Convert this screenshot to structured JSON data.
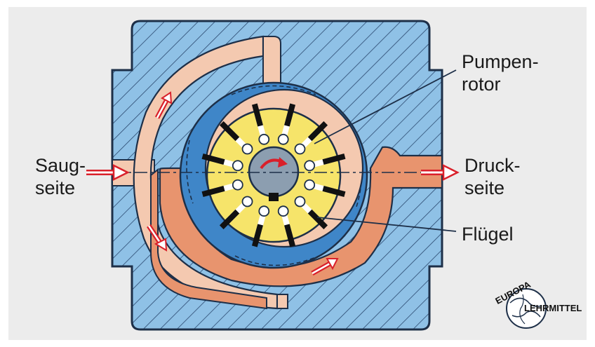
{
  "labels": {
    "suction_line1": "Saug-",
    "suction_line2": "seite",
    "pressure_line1": "Druck-",
    "pressure_line2": "seite",
    "rotor_line1": "Pumpen-",
    "rotor_line2": "rotor",
    "vane": "Flügel"
  },
  "logo": {
    "top_text": "EUROPA",
    "bottom_text": "LEHRMITTEL"
  },
  "colors": {
    "housing_blue": "#8fc1e6",
    "hatch_line": "#2b4a70",
    "ring_blue": "#3f86c8",
    "rotor_yellow": "#f6e46a",
    "suction_channel": "#f4c9b0",
    "pressure_channel": "#e8946e",
    "arrow_red": "#d9202a",
    "vane_black": "#111111",
    "hub_gray": "#8c9eb0"
  }
}
